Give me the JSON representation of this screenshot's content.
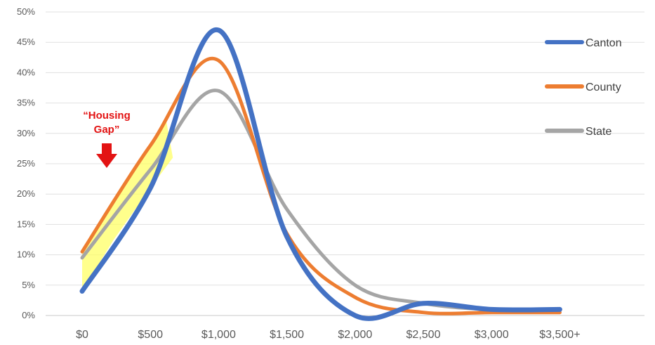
{
  "chart_data": {
    "type": "line",
    "title": "",
    "xlabel": "",
    "ylabel": "",
    "categories": [
      "$0",
      "$500",
      "$1,000",
      "$1,500",
      "$2,000",
      "$2,500",
      "$3,000",
      "$3,500+"
    ],
    "y_ticks": [
      "0%",
      "5%",
      "10%",
      "15%",
      "20%",
      "25%",
      "30%",
      "35%",
      "40%",
      "45%",
      "50%"
    ],
    "ylim": [
      0,
      50
    ],
    "grid": true,
    "legend_position": "right",
    "series": [
      {
        "name": "Canton",
        "values": [
          4,
          21,
          47,
          13,
          0,
          2,
          1,
          1
        ],
        "color": "#4472c4"
      },
      {
        "name": "County",
        "values": [
          10.5,
          28,
          42,
          13.5,
          3,
          0.5,
          0.5,
          0.5
        ],
        "color": "#ed7d31"
      },
      {
        "name": "State",
        "values": [
          9.5,
          24,
          37,
          17.5,
          5,
          2,
          1,
          1
        ],
        "color": "#a5a5a5"
      }
    ],
    "annotations": [
      {
        "text_line1": "“Housing",
        "text_line2": "Gap”",
        "color": "#e31313",
        "icon": "down-arrow-icon"
      }
    ],
    "highlight": {
      "name": "housing-gap-area",
      "color": "#ffff66"
    }
  }
}
